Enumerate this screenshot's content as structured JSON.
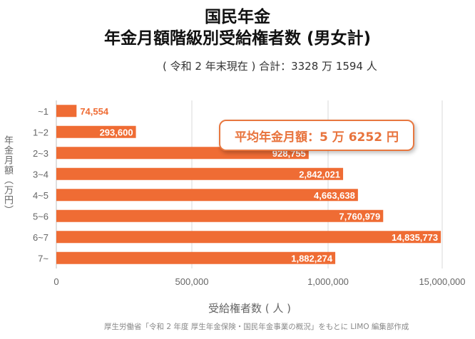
{
  "header": {
    "title_line1": "国民年金",
    "title_line2": "年金月額階級別受給権者数 (男女計)",
    "subtitle": "( 令和 2 年末現在 ) 合計：3328 万 1594 人"
  },
  "callout": {
    "text": "平均年金月額：5 万 6252 円"
  },
  "source": "厚生労働省「令和 2 年度 厚生年金保険・国民年金事業の概況」をもとに LIMO 編集部作成",
  "colors": {
    "bar": "#ef6c34",
    "inside_label": "#ffffff",
    "outside_label": "#ef6c34",
    "grid": "#d9d9d9"
  },
  "chart_data": {
    "type": "bar",
    "orientation": "horizontal",
    "title": "年金月額階級別受給権者数 (男女計)",
    "ylabel": "年金月額（万円）",
    "xlabel": "受給権者数 ( 人 )",
    "categories": [
      "~1",
      "1~2",
      "2~3",
      "3~4",
      "4~5",
      "5~6",
      "6~7",
      "7~"
    ],
    "values": [
      74554,
      293600,
      928755,
      2842021,
      4663638,
      7760979,
      14835773,
      1882274
    ],
    "value_labels": [
      "74,554",
      "293,600",
      "928,755",
      "2,842,021",
      "4,663,638",
      "7,760,979",
      "14,835,773",
      "1,882,274"
    ],
    "x_tick_values": [
      0,
      500000,
      1000000,
      15000000
    ],
    "x_tick_labels": [
      "0",
      "500,000",
      "1,000,000",
      "15,000,000"
    ],
    "grid": true,
    "legend": "none"
  }
}
